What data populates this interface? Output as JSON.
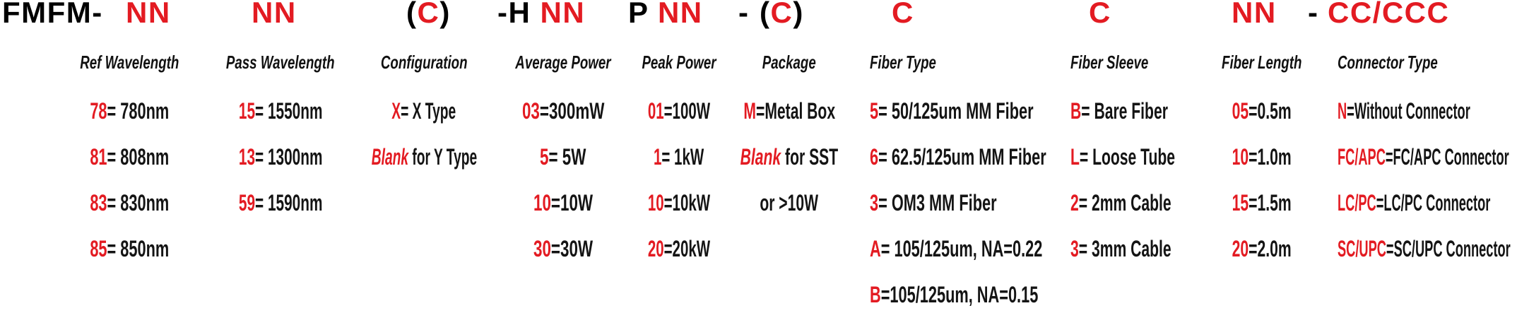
{
  "colors": {
    "accent_red": "#e31b22",
    "text_black": "#111111"
  },
  "part_number": {
    "segments": [
      {
        "name": "prefix",
        "parts": [
          {
            "text": "FMFM-",
            "red": false
          }
        ]
      },
      {
        "name": "ref-wavelength",
        "parts": [
          {
            "text": "NN",
            "red": true
          }
        ]
      },
      {
        "name": "pass-wavelength",
        "parts": [
          {
            "text": "NN",
            "red": true
          }
        ]
      },
      {
        "name": "configuration",
        "parts": [
          {
            "text": "(",
            "red": false
          },
          {
            "text": "C",
            "red": true
          },
          {
            "text": ")",
            "red": false
          }
        ]
      },
      {
        "name": "average-power",
        "parts": [
          {
            "text": "-H ",
            "red": false
          },
          {
            "text": "NN",
            "red": true
          }
        ]
      },
      {
        "name": "peak-power",
        "parts": [
          {
            "text": "P ",
            "red": false
          },
          {
            "text": "NN",
            "red": true
          }
        ]
      },
      {
        "name": "separator-1",
        "parts": [
          {
            "text": "-",
            "red": false
          }
        ]
      },
      {
        "name": "package",
        "parts": [
          {
            "text": "(",
            "red": false
          },
          {
            "text": "C",
            "red": true
          },
          {
            "text": ")",
            "red": false
          }
        ]
      },
      {
        "name": "fiber-type",
        "parts": [
          {
            "text": "C",
            "red": true
          }
        ]
      },
      {
        "name": "fiber-sleeve",
        "parts": [
          {
            "text": "C",
            "red": true
          }
        ]
      },
      {
        "name": "fiber-length",
        "parts": [
          {
            "text": "NN",
            "red": true
          }
        ]
      },
      {
        "name": "separator-2",
        "parts": [
          {
            "text": "-",
            "red": false
          }
        ]
      },
      {
        "name": "connector-type",
        "parts": [
          {
            "text": "CC/CCC",
            "red": true
          }
        ]
      }
    ]
  },
  "columns": [
    {
      "label": "Ref Wavelength",
      "rows": [
        {
          "code": "78",
          "rest": "= 780nm",
          "italic": false
        },
        {
          "code": "81",
          "rest": "= 808nm",
          "italic": false
        },
        {
          "code": "83",
          "rest": "= 830nm",
          "italic": false
        },
        {
          "code": "85",
          "rest": "= 850nm",
          "italic": false
        }
      ]
    },
    {
      "label": "Pass Wavelength",
      "rows": [
        {
          "code": "15",
          "rest": "= 1550nm",
          "italic": false
        },
        {
          "code": "13",
          "rest": "= 1300nm",
          "italic": false
        },
        {
          "code": "59",
          "rest": "= 1590nm",
          "italic": false
        }
      ]
    },
    {
      "label": "Configuration",
      "rows": [
        {
          "code": "X",
          "rest": "= X Type",
          "italic": false
        },
        {
          "code": "Blank",
          "rest": " for Y Type",
          "italic": true
        }
      ]
    },
    {
      "label": "Average Power",
      "rows": [
        {
          "code": "03",
          "rest": "=300mW",
          "italic": false
        },
        {
          "code": "5",
          "rest": "= 5W",
          "italic": false
        },
        {
          "code": "10",
          "rest": "=10W",
          "italic": false
        },
        {
          "code": "30",
          "rest": "=30W",
          "italic": false
        }
      ]
    },
    {
      "label": "Peak Power",
      "rows": [
        {
          "code": "01",
          "rest": "=100W",
          "italic": false
        },
        {
          "code": "1",
          "rest": "= 1kW",
          "italic": false
        },
        {
          "code": "10",
          "rest": "=10kW",
          "italic": false
        },
        {
          "code": "20",
          "rest": "=20kW",
          "italic": false
        }
      ]
    },
    {
      "label": "Package",
      "rows": [
        {
          "code": "M",
          "rest": "=Metal Box",
          "italic": false
        },
        {
          "code": "Blank",
          "rest": " for SST",
          "italic": true
        },
        {
          "code": "",
          "rest": "or >10W",
          "italic": false
        }
      ]
    },
    {
      "label": "Fiber Type",
      "rows": [
        {
          "code": "5",
          "rest": "= 50/125um MM Fiber",
          "italic": false
        },
        {
          "code": "6",
          "rest": "= 62.5/125um MM Fiber",
          "italic": false
        },
        {
          "code": "3",
          "rest": "= OM3 MM Fiber",
          "italic": false
        },
        {
          "code": "A",
          "rest": "= 105/125um, NA=0.22",
          "italic": false
        },
        {
          "code": "B",
          "rest": "=105/125um, NA=0.15",
          "italic": false
        }
      ]
    },
    {
      "label": "Fiber Sleeve",
      "rows": [
        {
          "code": "B",
          "rest": "= Bare Fiber",
          "italic": false
        },
        {
          "code": "L",
          "rest": "= Loose Tube",
          "italic": false
        },
        {
          "code": "2",
          "rest": "= 2mm Cable",
          "italic": false
        },
        {
          "code": "3",
          "rest": "= 3mm Cable",
          "italic": false
        }
      ]
    },
    {
      "label": "Fiber Length",
      "rows": [
        {
          "code": "05",
          "rest": "=0.5m",
          "italic": false
        },
        {
          "code": "10",
          "rest": "=1.0m",
          "italic": false
        },
        {
          "code": "15",
          "rest": "=1.5m",
          "italic": false
        },
        {
          "code": "20",
          "rest": "=2.0m",
          "italic": false
        }
      ]
    },
    {
      "label": "Connector Type",
      "rows": [
        {
          "code": "N",
          "rest": "=Without Connector",
          "italic": false
        },
        {
          "code": "FC/APC",
          "rest": "=FC/APC Connector",
          "italic": false
        },
        {
          "code": "LC/PC",
          "rest": "=LC/PC Connector",
          "italic": false
        },
        {
          "code": "SC/UPC",
          "rest": "=SC/UPC Connector",
          "italic": false
        }
      ]
    }
  ]
}
